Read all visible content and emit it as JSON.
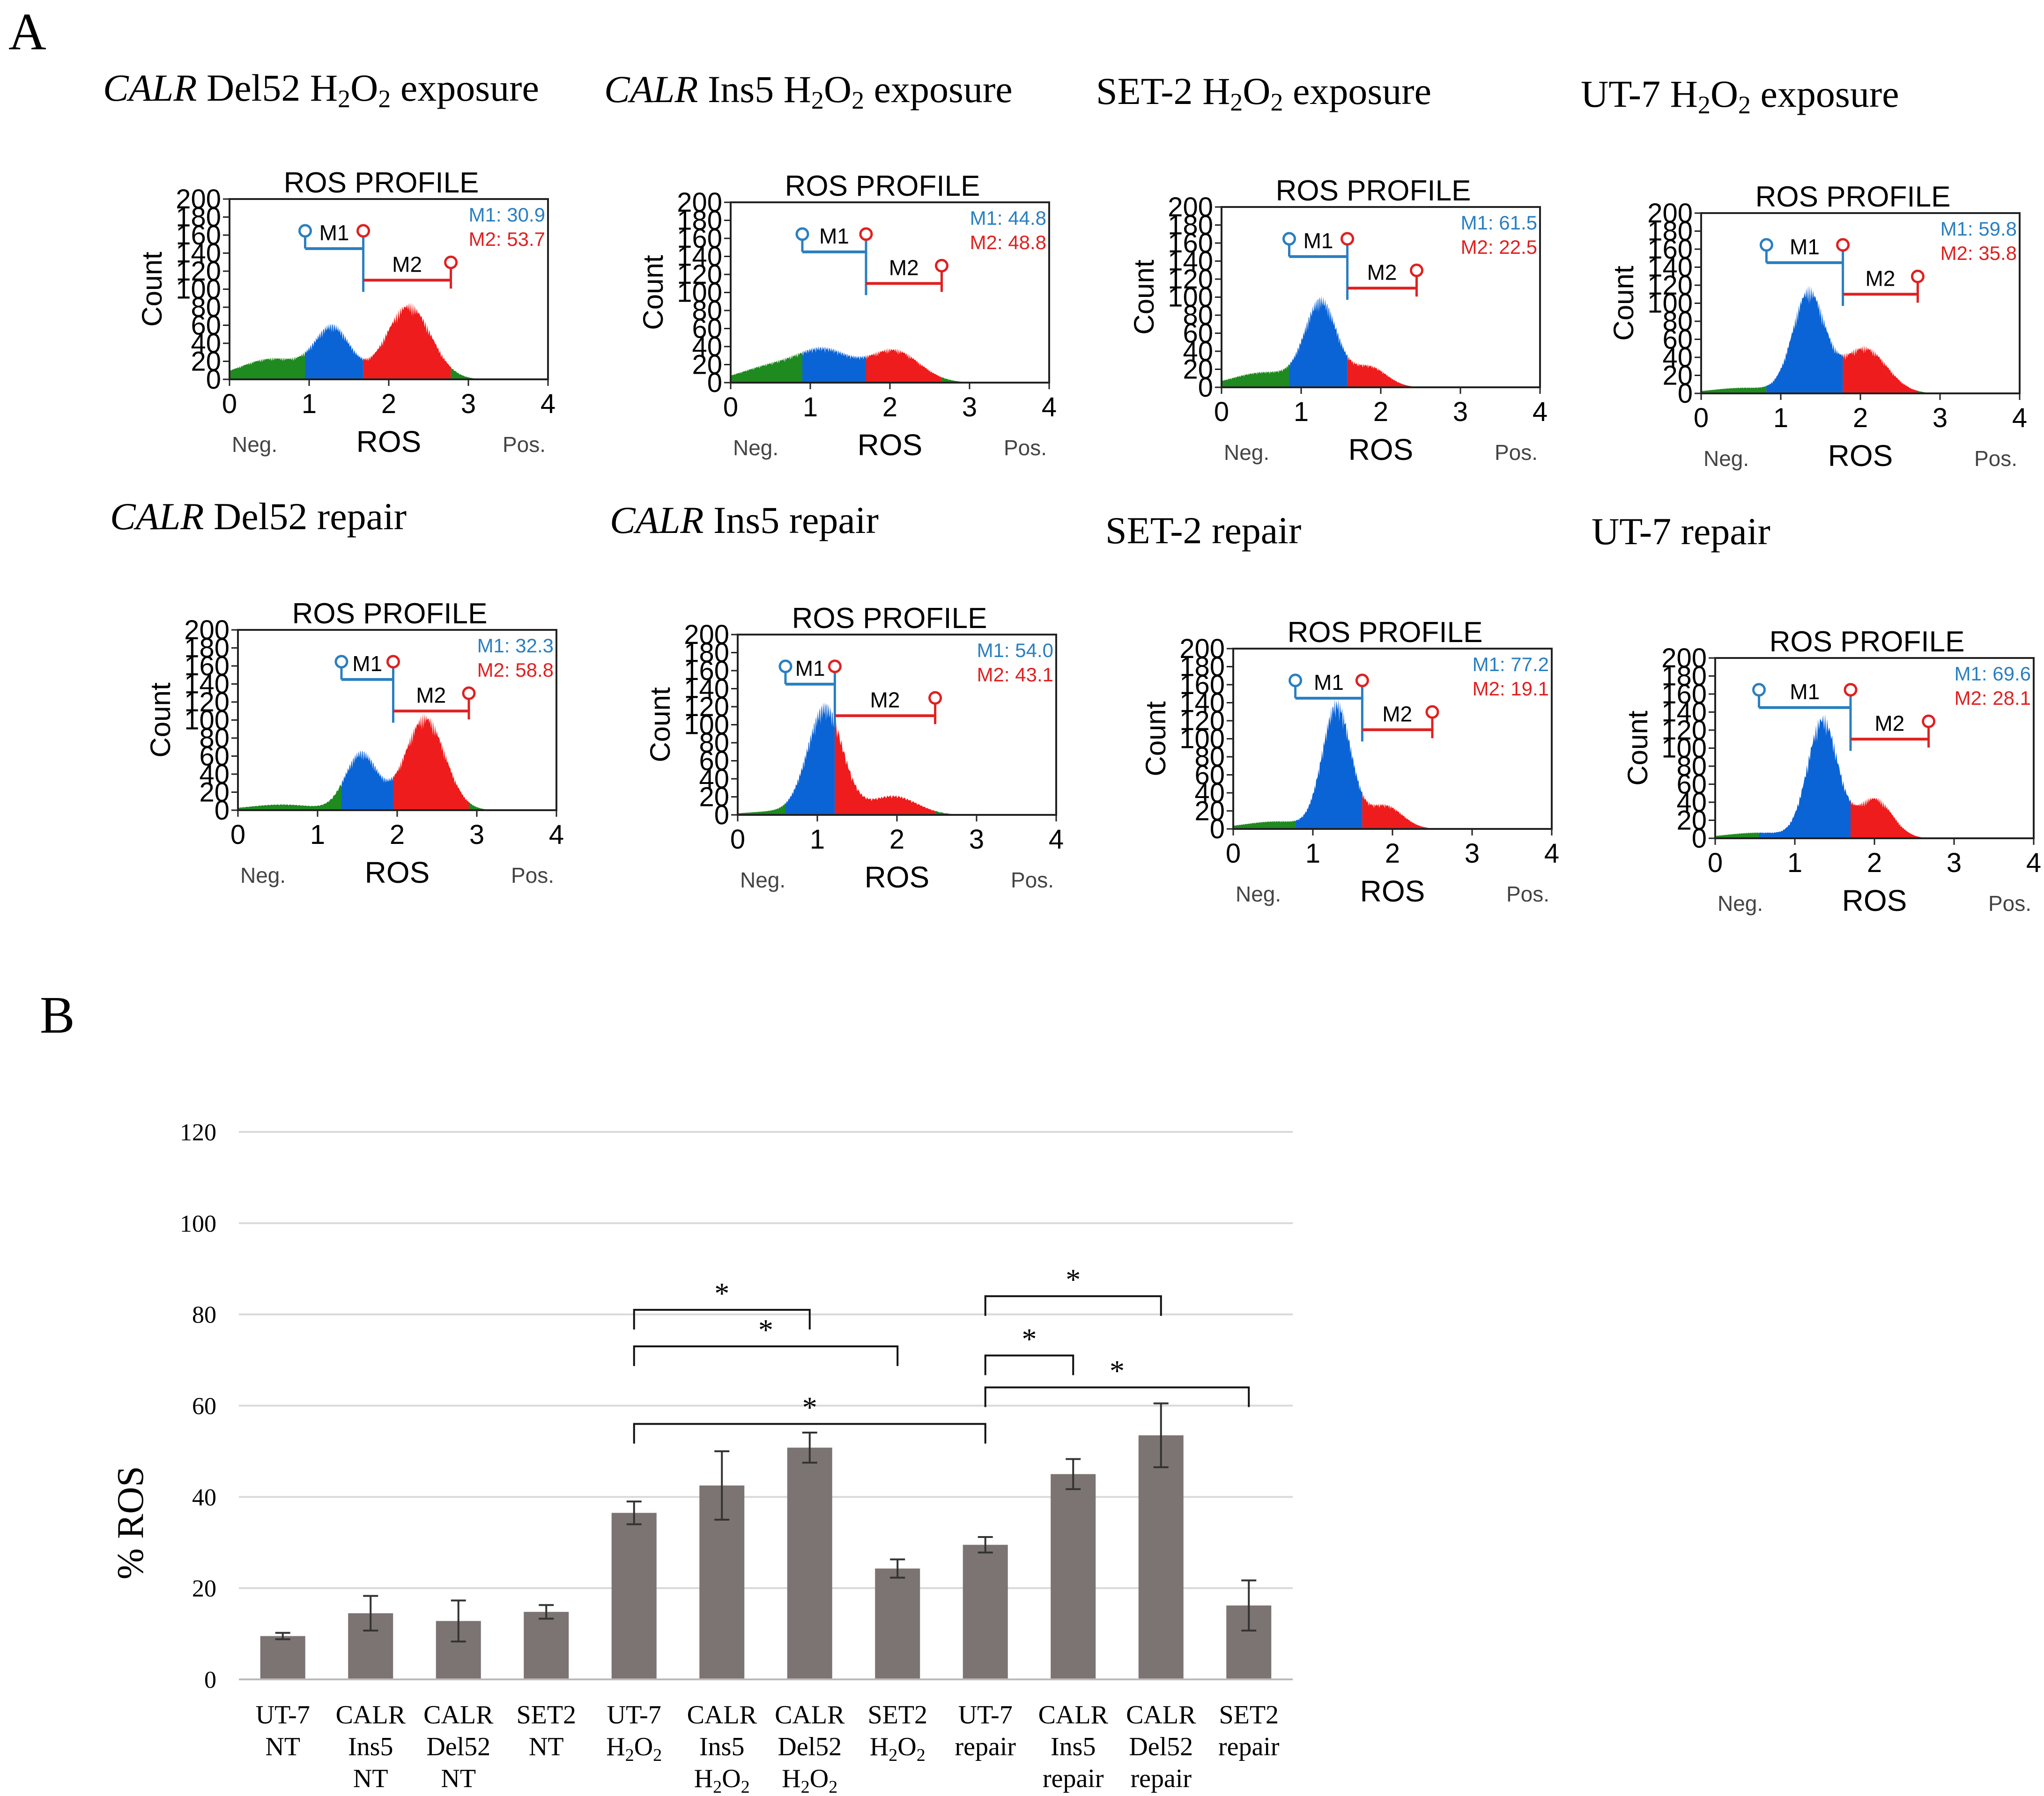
{
  "panel_labels": {
    "a": "A",
    "b": "B"
  },
  "flow_common": {
    "profile_title": "ROS PROFILE",
    "ylabel": "Count",
    "xlabel": "ROS",
    "neg_label": "Neg.",
    "pos_label": "Pos.",
    "y_ticks": [
      "0",
      "20",
      "40",
      "60",
      "80",
      "100",
      "120",
      "140",
      "160",
      "180",
      "200"
    ],
    "x_ticks": [
      "0",
      "1",
      "2",
      "3",
      "4"
    ],
    "gate1_label": "M1",
    "gate2_label": "M2",
    "colors": {
      "negative": "#1f8a1f",
      "m1": "#0b64d6",
      "m2": "#ee1c1c",
      "m1_text": "#2a7fc0",
      "m2_text": "#e02020"
    }
  },
  "chart_data": [
    {
      "type": "histogram",
      "title": "CALR Del52 H2O2 exposure",
      "title_parts": {
        "italic": "CALR",
        "cell": "Del52",
        "condition": "H",
        "sub1": "2",
        "mid": "O",
        "sub2": "2",
        "suffix": "exposure"
      },
      "xlim": [
        0,
        4
      ],
      "ylim": [
        0,
        200
      ],
      "gates": {
        "m1": [
          0.95,
          1.68
        ],
        "m2": [
          1.68,
          2.78
        ]
      },
      "m1_label": "M1: 30.9",
      "m2_label": "M2: 53.7",
      "peaks": [
        {
          "x": 1.3,
          "h": 52,
          "w": 0.22
        },
        {
          "x": 2.25,
          "h": 78,
          "w": 0.28
        }
      ],
      "base": 22
    },
    {
      "type": "histogram",
      "title": "CALR Ins5 H2O2 exposure",
      "title_parts": {
        "italic": "CALR",
        "cell": "Ins5",
        "condition": "H",
        "sub1": "2",
        "mid": "O",
        "sub2": "2",
        "suffix": "exposure"
      },
      "xlim": [
        0,
        4
      ],
      "ylim": [
        0,
        200
      ],
      "gates": {
        "m1": [
          0.9,
          1.7
        ],
        "m2": [
          1.7,
          2.65
        ]
      },
      "m1_label": "M1: 44.8",
      "m2_label": "M2: 48.8",
      "peaks": [
        {
          "x": 1.2,
          "h": 30,
          "w": 0.32
        },
        {
          "x": 2.05,
          "h": 34,
          "w": 0.32
        }
      ],
      "base": 18
    },
    {
      "type": "histogram",
      "title": "SET-2 H2O2 exposure",
      "title_parts": {
        "italic": "",
        "cell": "SET-2",
        "condition": "H",
        "sub1": "2",
        "mid": "O",
        "sub2": "2",
        "suffix": "exposure"
      },
      "xlim": [
        0,
        4
      ],
      "ylim": [
        0,
        200
      ],
      "gates": {
        "m1": [
          0.85,
          1.58
        ],
        "m2": [
          1.58,
          2.45
        ]
      },
      "m1_label": "M1: 61.5",
      "m2_label": "M2: 22.5",
      "peaks": [
        {
          "x": 1.25,
          "h": 88,
          "w": 0.2
        },
        {
          "x": 1.85,
          "h": 22,
          "w": 0.22
        }
      ],
      "base": 16
    },
    {
      "type": "histogram",
      "title": "UT-7 H2O2 exposure",
      "title_parts": {
        "italic": "",
        "cell": "UT-7",
        "condition": "H",
        "sub1": "2",
        "mid": "O",
        "sub2": "2",
        "suffix": "exposure"
      },
      "xlim": [
        0,
        4
      ],
      "ylim": [
        0,
        200
      ],
      "gates": {
        "m1": [
          0.82,
          1.78
        ],
        "m2": [
          1.78,
          2.72
        ]
      },
      "m1_label": "M1: 59.8",
      "m2_label": "M2: 35.8",
      "peaks": [
        {
          "x": 1.35,
          "h": 106,
          "w": 0.2
        },
        {
          "x": 2.05,
          "h": 48,
          "w": 0.28
        }
      ],
      "base": 6
    },
    {
      "type": "histogram",
      "title": "CALR Del52 repair",
      "title_parts": {
        "italic": "CALR",
        "cell": "Del52",
        "condition": "repair",
        "sub1": "",
        "mid": "",
        "sub2": "",
        "suffix": ""
      },
      "xlim": [
        0,
        4
      ],
      "ylim": [
        0,
        200
      ],
      "gates": {
        "m1": [
          1.3,
          1.95
        ],
        "m2": [
          1.95,
          2.9
        ]
      },
      "m1_label": "M1: 32.3",
      "m2_label": "M2: 58.8",
      "peaks": [
        {
          "x": 1.55,
          "h": 60,
          "w": 0.2
        },
        {
          "x": 2.35,
          "h": 98,
          "w": 0.25
        }
      ],
      "base": 6
    },
    {
      "type": "histogram",
      "title": "CALR Ins5 repair",
      "title_parts": {
        "italic": "CALR",
        "cell": "Ins5",
        "condition": "repair",
        "sub1": "",
        "mid": "",
        "sub2": "",
        "suffix": ""
      },
      "xlim": [
        0,
        4
      ],
      "ylim": [
        0,
        200
      ],
      "gates": {
        "m1": [
          0.6,
          1.22
        ],
        "m2": [
          1.22,
          2.48
        ]
      },
      "m1_label": "M1: 54.0",
      "m2_label": "M2: 43.1",
      "peaks": [
        {
          "x": 1.1,
          "h": 112,
          "w": 0.22
        },
        {
          "x": 1.95,
          "h": 20,
          "w": 0.3
        }
      ],
      "base": 4
    },
    {
      "type": "histogram",
      "title": "SET-2 repair",
      "title_parts": {
        "italic": "",
        "cell": "SET-2",
        "condition": "repair",
        "sub1": "",
        "mid": "",
        "sub2": "",
        "suffix": ""
      },
      "xlim": [
        0,
        4
      ],
      "ylim": [
        0,
        200
      ],
      "gates": {
        "m1": [
          0.78,
          1.62
        ],
        "m2": [
          1.62,
          2.5
        ]
      },
      "m1_label": "M1: 77.2",
      "m2_label": "M2: 19.1",
      "peaks": [
        {
          "x": 1.3,
          "h": 130,
          "w": 0.18
        },
        {
          "x": 1.9,
          "h": 25,
          "w": 0.22
        }
      ],
      "base": 8
    },
    {
      "type": "histogram",
      "title": "UT-7 repair",
      "title_parts": {
        "italic": "",
        "cell": "UT-7",
        "condition": "repair",
        "sub1": "",
        "mid": "",
        "sub2": "",
        "suffix": ""
      },
      "xlim": [
        0,
        4
      ],
      "ylim": [
        0,
        200
      ],
      "gates": {
        "m1": [
          0.55,
          1.7
        ],
        "m2": [
          1.7,
          2.68
        ]
      },
      "m1_label": "M1: 69.6",
      "m2_label": "M2: 28.1",
      "peaks": [
        {
          "x": 1.35,
          "h": 125,
          "w": 0.19
        },
        {
          "x": 2.0,
          "h": 42,
          "w": 0.22
        }
      ],
      "base": 6
    },
    {
      "type": "bar",
      "ylabel": "% ROS",
      "ylim": [
        0,
        120
      ],
      "yticks": [
        0,
        20,
        40,
        60,
        80,
        100,
        120
      ],
      "bar_color": "#7b7472",
      "categories": [
        {
          "lines": [
            "UT-7",
            "NT"
          ],
          "sub": [
            false,
            false
          ]
        },
        {
          "lines": [
            "CALR",
            "Ins5",
            "NT"
          ],
          "sub": [
            false,
            false,
            false
          ]
        },
        {
          "lines": [
            "CALR",
            "Del52",
            "NT"
          ],
          "sub": [
            false,
            false,
            false
          ]
        },
        {
          "lines": [
            "SET2",
            "NT"
          ],
          "sub": [
            false,
            false
          ]
        },
        {
          "lines": [
            "UT-7",
            "H2O2"
          ],
          "sub": [
            false,
            true
          ]
        },
        {
          "lines": [
            "CALR",
            "Ins5",
            "H2O2"
          ],
          "sub": [
            false,
            false,
            true
          ]
        },
        {
          "lines": [
            "CALR",
            "Del52",
            "H2O2"
          ],
          "sub": [
            false,
            false,
            true
          ]
        },
        {
          "lines": [
            "SET2",
            "H2O2"
          ],
          "sub": [
            false,
            true
          ]
        },
        {
          "lines": [
            "UT-7",
            "repair"
          ],
          "sub": [
            false,
            false
          ]
        },
        {
          "lines": [
            "CALR",
            "Ins5",
            "repair"
          ],
          "sub": [
            false,
            false,
            false
          ]
        },
        {
          "lines": [
            "CALR",
            "Del52",
            "repair"
          ],
          "sub": [
            false,
            false,
            false
          ]
        },
        {
          "lines": [
            "SET2",
            "repair"
          ],
          "sub": [
            false,
            false
          ]
        }
      ],
      "values": [
        9.5,
        14.5,
        12.8,
        14.8,
        36.5,
        42.5,
        50.8,
        24.3,
        29.5,
        45,
        53.5,
        16.2
      ],
      "errors": [
        0.7,
        3.8,
        4.5,
        1.5,
        2.5,
        7.5,
        3.3,
        2.0,
        1.7,
        3.3,
        7.0,
        5.5
      ],
      "significance": [
        {
          "from": 4,
          "to": 6,
          "y": 81,
          "label": "*"
        },
        {
          "from": 4,
          "to": 7,
          "y": 73,
          "label": "*"
        },
        {
          "from": 4,
          "to": 8,
          "y": 56,
          "label": "*"
        },
        {
          "from": 8,
          "to": 10,
          "y": 84,
          "label": "*"
        },
        {
          "from": 8,
          "to": 9,
          "y": 71,
          "label": "*"
        },
        {
          "from": 8,
          "to": 11,
          "y": 64,
          "label": "*"
        }
      ]
    }
  ]
}
